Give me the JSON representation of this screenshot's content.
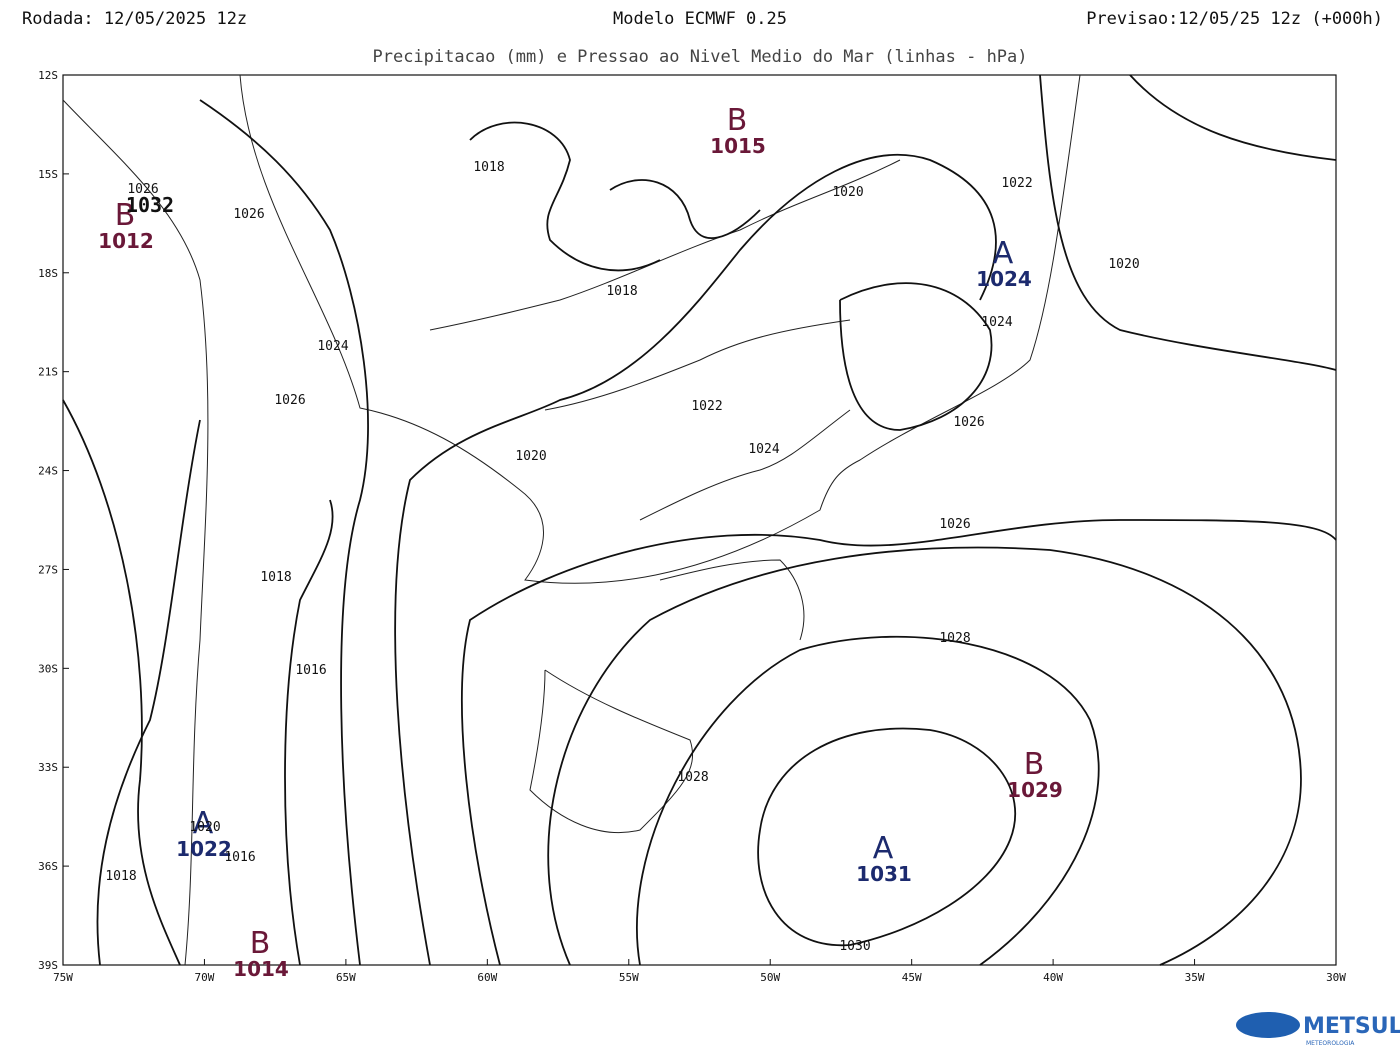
{
  "header": {
    "run": "Rodada: 12/05/2025 12z",
    "model": "Modelo ECMWF 0.25",
    "forecast": "Previsao:12/05/25 12z (+000h)",
    "subtitle": "Precipitacao (mm) e Pressao ao Nivel Medio do Mar (linhas - hPa)"
  },
  "map": {
    "lat_labels": [
      "12S",
      "15S",
      "18S",
      "21S",
      "24S",
      "27S",
      "30S",
      "33S",
      "36S",
      "39S"
    ],
    "lon_labels": [
      "75W",
      "70W",
      "65W",
      "60W",
      "55W",
      "50W",
      "45W",
      "40W",
      "35W",
      "30W"
    ],
    "centers": [
      {
        "symbol": "B",
        "value": "1015"
      },
      {
        "symbol": "B",
        "value": "1012"
      },
      {
        "symbol": "A",
        "value": "1024"
      },
      {
        "symbol": "A",
        "value": "1022"
      },
      {
        "symbol": "B",
        "value": "1014"
      },
      {
        "symbol": "B",
        "value": "1029"
      },
      {
        "symbol": "A",
        "value": "1031"
      }
    ],
    "contour_labels": [
      "1018",
      "1020",
      "1022",
      "1020",
      "1018",
      "1024",
      "1024",
      "1026",
      "1022",
      "1026",
      "1024",
      "1020",
      "1026",
      "1018",
      "1028",
      "1016",
      "1028",
      "1020",
      "1016",
      "1018",
      "1030",
      "1026",
      "1026",
      "1032"
    ]
  },
  "logo": {
    "name": "METSUL",
    "tagline": "METEOROLOGIA"
  }
}
